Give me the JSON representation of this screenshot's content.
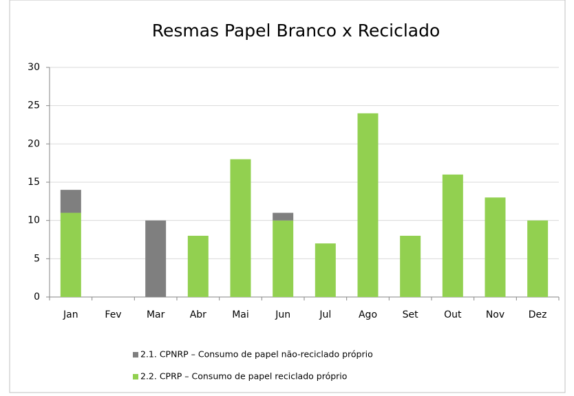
{
  "chart_data": {
    "type": "stacked_bar",
    "title": "Resmas Papel Branco x Reciclado",
    "categories": [
      "Jan",
      "Fev",
      "Mar",
      "Abr",
      "Mai",
      "Jun",
      "Jul",
      "Ago",
      "Set",
      "Out",
      "Nov",
      "Dez"
    ],
    "series": [
      {
        "name": "2.1. CPNRP – Consumo de papel não-reciclado próprio",
        "color": "#7f7f7f",
        "values": [
          3,
          0,
          10,
          0,
          0,
          1,
          0,
          0,
          0,
          0,
          0,
          0
        ]
      },
      {
        "name": "2.2. CPRP – Consumo de papel reciclado próprio",
        "color": "#92d050",
        "values": [
          11,
          0,
          0,
          8,
          18,
          10,
          7,
          24,
          8,
          16,
          13,
          10
        ]
      }
    ],
    "ylim": [
      0,
      30
    ],
    "yticks": [
      0,
      5,
      10,
      15,
      20,
      25,
      30
    ],
    "grid": true
  }
}
